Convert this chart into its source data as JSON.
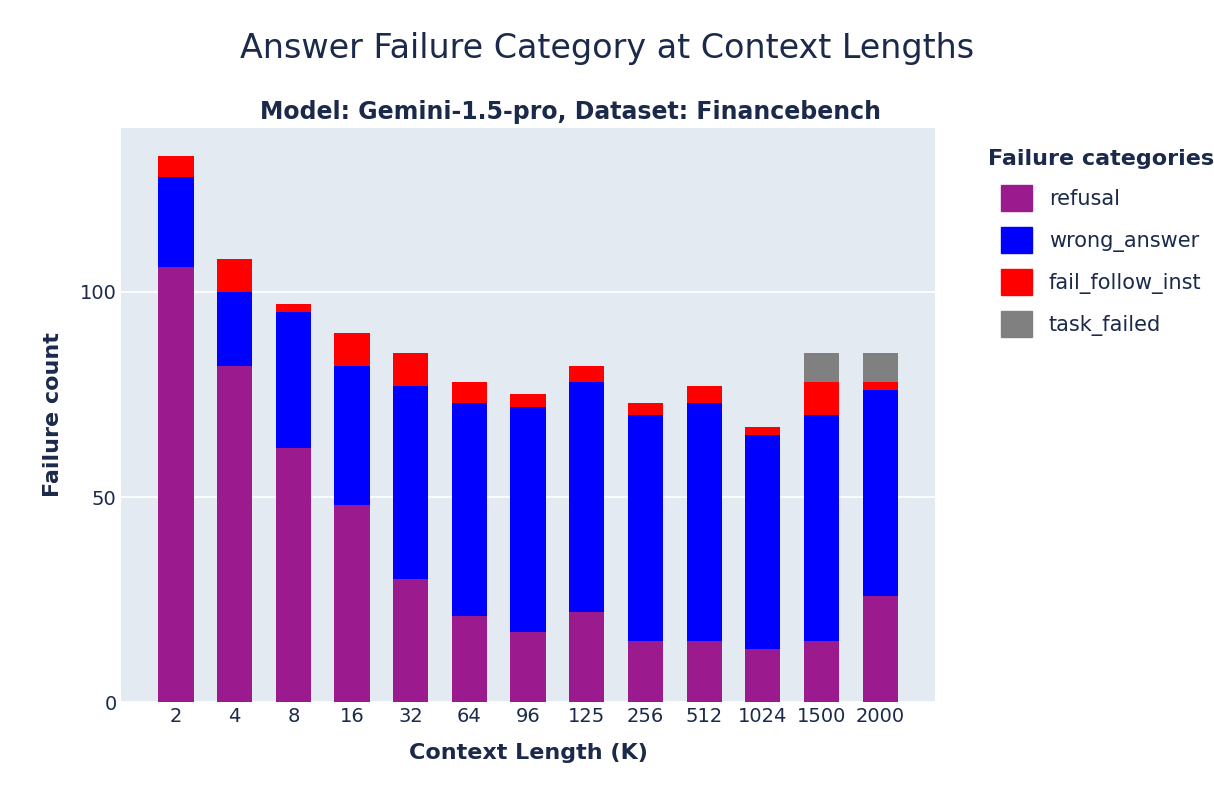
{
  "title": "Answer Failure Category at Context Lengths",
  "subtitle": "Model: Gemini-1.5-pro, Dataset: Financebench",
  "xlabel": "Context Length (K)",
  "ylabel": "Failure count",
  "categories": [
    "2",
    "4",
    "8",
    "16",
    "32",
    "64",
    "96",
    "125",
    "256",
    "512",
    "1024",
    "1500",
    "2000"
  ],
  "refusal": [
    106,
    82,
    62,
    48,
    30,
    21,
    17,
    22,
    15,
    15,
    13,
    15,
    26
  ],
  "wrong_answer": [
    22,
    18,
    33,
    34,
    47,
    52,
    55,
    56,
    55,
    58,
    52,
    55,
    50
  ],
  "fail_follow_inst": [
    5,
    8,
    2,
    8,
    8,
    5,
    3,
    4,
    3,
    4,
    2,
    8,
    2
  ],
  "task_failed": [
    0,
    0,
    0,
    0,
    0,
    0,
    0,
    0,
    0,
    0,
    0,
    7,
    7
  ],
  "colors": {
    "refusal": "#9B1B8E",
    "wrong_answer": "#0000FF",
    "fail_follow_inst": "#FF0000",
    "task_failed": "#808080"
  },
  "legend_title": "Failure categories",
  "background_color": "#E4EAF2",
  "title_color": "#1B2A4A",
  "ylim": [
    0,
    140
  ],
  "title_fontsize": 24,
  "subtitle_fontsize": 17,
  "axis_label_fontsize": 16,
  "tick_fontsize": 14,
  "legend_fontsize": 15
}
